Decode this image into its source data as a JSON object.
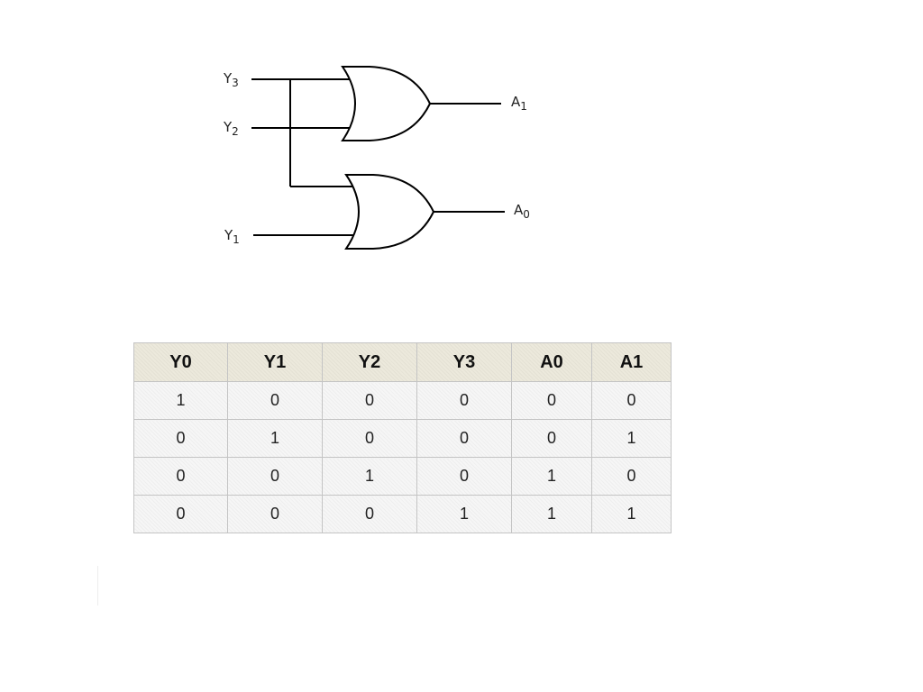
{
  "circuit": {
    "inputs": [
      {
        "base": "Y",
        "sub": "3"
      },
      {
        "base": "Y",
        "sub": "2"
      },
      {
        "base": "Y",
        "sub": "1"
      }
    ],
    "outputs": [
      {
        "base": "A",
        "sub": "1"
      },
      {
        "base": "A",
        "sub": "0"
      }
    ],
    "gate_type": "OR"
  },
  "table": {
    "headers": [
      "Y0",
      "Y1",
      "Y2",
      "Y3",
      "A0",
      "A1"
    ],
    "rows": [
      [
        "1",
        "0",
        "0",
        "0",
        "0",
        "0"
      ],
      [
        "0",
        "1",
        "0",
        "0",
        "0",
        "1"
      ],
      [
        "0",
        "0",
        "1",
        "0",
        "1",
        "0"
      ],
      [
        "0",
        "0",
        "0",
        "1",
        "1",
        "1"
      ]
    ]
  }
}
